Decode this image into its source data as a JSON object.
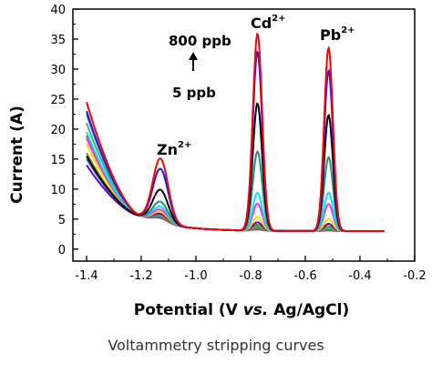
{
  "caption": "Voltammetry stripping curves",
  "chart_data": {
    "type": "line",
    "title": "",
    "xlabel_pre": "Potential (V ",
    "xlabel_italic": "vs.",
    "xlabel_post": " Ag/AgCl)",
    "ylabel": "Current (A)",
    "xlim": [
      -1.45,
      -0.2
    ],
    "ylim": [
      -2,
      40
    ],
    "xticks": [
      -1.4,
      -1.2,
      -1.0,
      -0.8,
      -0.6,
      -0.4,
      -0.2
    ],
    "xtick_labels": [
      "-1.4",
      "-1.2",
      "-1.0",
      "-0.8",
      "-0.6",
      "-0.4",
      "-0.2"
    ],
    "yticks": [
      0,
      5,
      10,
      15,
      20,
      25,
      30,
      35,
      40
    ],
    "ytick_labels": [
      "0",
      "5",
      "10",
      "15",
      "20",
      "25",
      "30",
      "35",
      "40"
    ],
    "x_range": [
      -1.4,
      -0.31
    ],
    "peak_centers": {
      "Zn": -1.13,
      "Cd": -0.775,
      "Pb": -0.515
    },
    "annotations": {
      "conc_high": "800 ppb",
      "conc_low": "5 ppb",
      "zn_label": "Zn",
      "zn_sup": "2+",
      "cd_label": "Cd",
      "cd_sup": "2+",
      "pb_label": "Pb",
      "pb_sup": "2+"
    },
    "series": [
      {
        "color": "#ff0000",
        "start": 24.5,
        "zn_peak": 14.5,
        "cd_peak": 35.8,
        "pb_peak": 33.5
      },
      {
        "color": "#1a1aff",
        "start": 23.0,
        "zn_peak": 12.8,
        "cd_peak": 32.8,
        "pb_peak": 29.7
      },
      {
        "color": "#000000",
        "start": 15.5,
        "zn_peak": 9.3,
        "cd_peak": 24.2,
        "pb_peak": 22.3
      },
      {
        "color": "#2e8b7a",
        "start": 22.5,
        "zn_peak": 7.3,
        "cd_peak": 16.2,
        "pb_peak": 15.3
      },
      {
        "color": "#00e5ff",
        "start": 19.5,
        "zn_peak": 6.5,
        "cd_peak": 9.3,
        "pb_peak": 9.4
      },
      {
        "color": "#ff33cc",
        "start": 18.5,
        "zn_peak": 6.0,
        "cd_peak": 7.5,
        "pb_peak": 7.5
      },
      {
        "color": "#f0e000",
        "start": 17.5,
        "zn_peak": 5.6,
        "cd_peak": 5.3,
        "pb_peak": 5.0
      },
      {
        "color": "#6a00cc",
        "start": 14.0,
        "zn_peak": 5.3,
        "cd_peak": 4.4,
        "pb_peak": 4.2
      },
      {
        "color": "#8b8b00",
        "start": 16.0,
        "zn_peak": 5.2,
        "cd_peak": 4.0,
        "pb_peak": 3.8
      },
      {
        "color": "#3cb371",
        "start": 21.0,
        "zn_peak": 5.0,
        "cd_peak": 3.7,
        "pb_peak": 3.5
      },
      {
        "color": "#4682b4",
        "start": 15.0,
        "zn_peak": 4.8,
        "cd_peak": 3.4,
        "pb_peak": 3.3
      },
      {
        "color": "#c0392b",
        "start": 19.0,
        "zn_peak": 4.6,
        "cd_peak": 3.2,
        "pb_peak": 3.1
      }
    ]
  }
}
